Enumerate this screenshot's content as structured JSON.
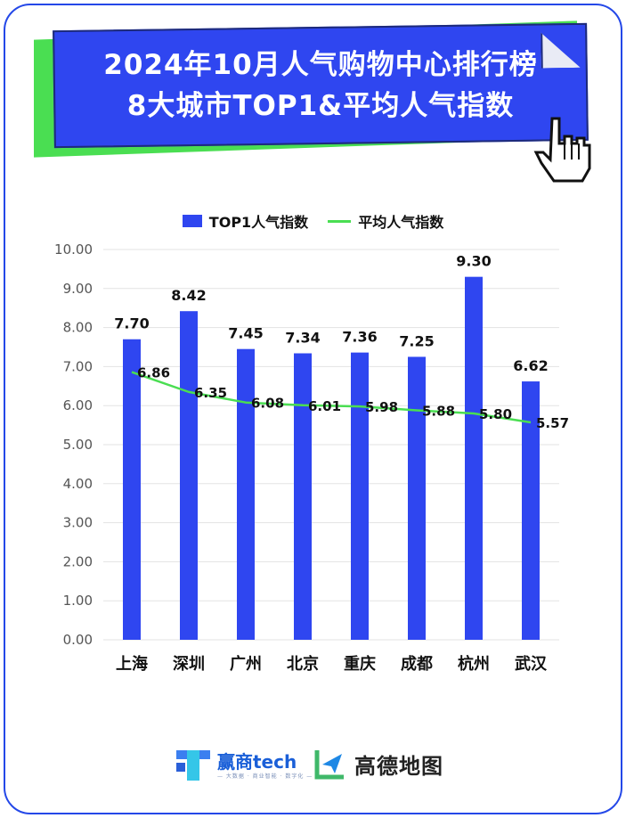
{
  "title": {
    "line1": "2024年10月人气购物中心排行榜",
    "line2": "8大城市TOP1&平均人气指数"
  },
  "colors": {
    "bar": "#2f46f0",
    "line": "#4ade52",
    "banner_front": "#2f46f0",
    "banner_back": "#4ade52",
    "frame": "#2448e8"
  },
  "chart_data": {
    "type": "bar",
    "categories": [
      "上海",
      "深圳",
      "广州",
      "北京",
      "重庆",
      "成都",
      "杭州",
      "武汉"
    ],
    "series": [
      {
        "name": "TOP1人气指数",
        "type": "bar",
        "values": [
          7.7,
          8.42,
          7.45,
          7.34,
          7.36,
          7.25,
          9.3,
          6.62
        ]
      },
      {
        "name": "平均人气指数",
        "type": "line",
        "values": [
          6.86,
          6.35,
          6.08,
          6.01,
          5.98,
          5.88,
          5.8,
          5.57
        ]
      }
    ],
    "ylim": [
      0,
      10
    ],
    "y_ticks": [
      "0.00",
      "1.00",
      "2.00",
      "3.00",
      "4.00",
      "5.00",
      "6.00",
      "7.00",
      "8.00",
      "9.00",
      "10.00"
    ],
    "grid": true,
    "legend": "top-center",
    "title": "",
    "xlabel": "",
    "ylabel": ""
  },
  "footer": {
    "logo1_name": "赢商tech",
    "logo1_sub": "— 大数据 · 商业智能 · 数字化 —",
    "logo2_name": "高德地图"
  },
  "icons": {
    "cursor": "hand-pointer-icon",
    "logo1": "yingshang-logo-icon",
    "logo2": "amap-logo-icon"
  }
}
